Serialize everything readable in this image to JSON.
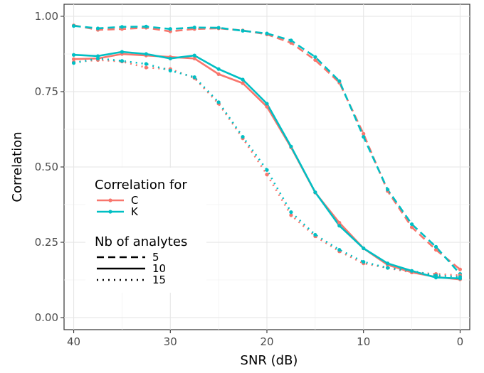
{
  "chart_data": {
    "type": "line",
    "xlabel": "SNR (dB)",
    "ylabel": "Correlation",
    "xlim": [
      41,
      -1
    ],
    "x_reversed": true,
    "ylim": [
      -0.04,
      1.04
    ],
    "x_ticks": [
      40,
      30,
      20,
      10,
      0
    ],
    "y_ticks": [
      0.0,
      0.25,
      0.5,
      0.75,
      1.0
    ],
    "x_tick_labels": [
      "40",
      "30",
      "20",
      "10",
      "0"
    ],
    "y_tick_labels": [
      "0.00",
      "0.25",
      "0.50",
      "0.75",
      "1.00"
    ],
    "grid": true,
    "legend_placement": "inside-left",
    "x": [
      40,
      37.5,
      35,
      32.5,
      30,
      27.5,
      25,
      22.5,
      20,
      17.5,
      15,
      12.5,
      10,
      7.5,
      5,
      2.5,
      0
    ],
    "color_legend": {
      "title": "Correlation for",
      "entries": [
        {
          "label": "C",
          "color": "#f8766d"
        },
        {
          "label": "K",
          "color": "#00bfc4"
        }
      ]
    },
    "linetype_legend": {
      "title": "Nb of analytes",
      "entries": [
        {
          "label": "5",
          "linetype": "dashed"
        },
        {
          "label": "10",
          "linetype": "solid"
        },
        {
          "label": "15",
          "linetype": "dotted"
        }
      ]
    },
    "series": [
      {
        "name": "C",
        "group": "5",
        "color": "#f8766d",
        "linetype": "dashed",
        "values": [
          0.97,
          0.955,
          0.958,
          0.962,
          0.95,
          0.958,
          0.96,
          0.953,
          0.94,
          0.912,
          0.855,
          0.78,
          0.61,
          0.42,
          0.3,
          0.225,
          0.16
        ]
      },
      {
        "name": "K",
        "group": "5",
        "color": "#00bfc4",
        "linetype": "dashed",
        "values": [
          0.968,
          0.96,
          0.965,
          0.966,
          0.958,
          0.963,
          0.962,
          0.952,
          0.943,
          0.92,
          0.865,
          0.785,
          0.6,
          0.425,
          0.31,
          0.235,
          0.145
        ]
      },
      {
        "name": "C",
        "group": "10",
        "color": "#f8766d",
        "linetype": "solid",
        "values": [
          0.858,
          0.86,
          0.875,
          0.87,
          0.865,
          0.86,
          0.808,
          0.778,
          0.7,
          0.565,
          0.415,
          0.315,
          0.23,
          0.175,
          0.15,
          0.135,
          0.127
        ]
      },
      {
        "name": "K",
        "group": "10",
        "color": "#00bfc4",
        "linetype": "solid",
        "values": [
          0.872,
          0.868,
          0.882,
          0.875,
          0.86,
          0.87,
          0.825,
          0.79,
          0.71,
          0.568,
          0.416,
          0.305,
          0.23,
          0.18,
          0.155,
          0.133,
          0.13
        ]
      },
      {
        "name": "C",
        "group": "15",
        "color": "#f8766d",
        "linetype": "dotted",
        "values": [
          0.848,
          0.855,
          0.85,
          0.83,
          0.825,
          0.795,
          0.71,
          0.595,
          0.475,
          0.34,
          0.27,
          0.22,
          0.18,
          0.165,
          0.15,
          0.145,
          0.14
        ]
      },
      {
        "name": "K",
        "group": "15",
        "color": "#00bfc4",
        "linetype": "dotted",
        "values": [
          0.845,
          0.86,
          0.852,
          0.842,
          0.82,
          0.798,
          0.715,
          0.6,
          0.49,
          0.35,
          0.275,
          0.225,
          0.185,
          0.165,
          0.155,
          0.14,
          0.135
        ]
      }
    ]
  }
}
